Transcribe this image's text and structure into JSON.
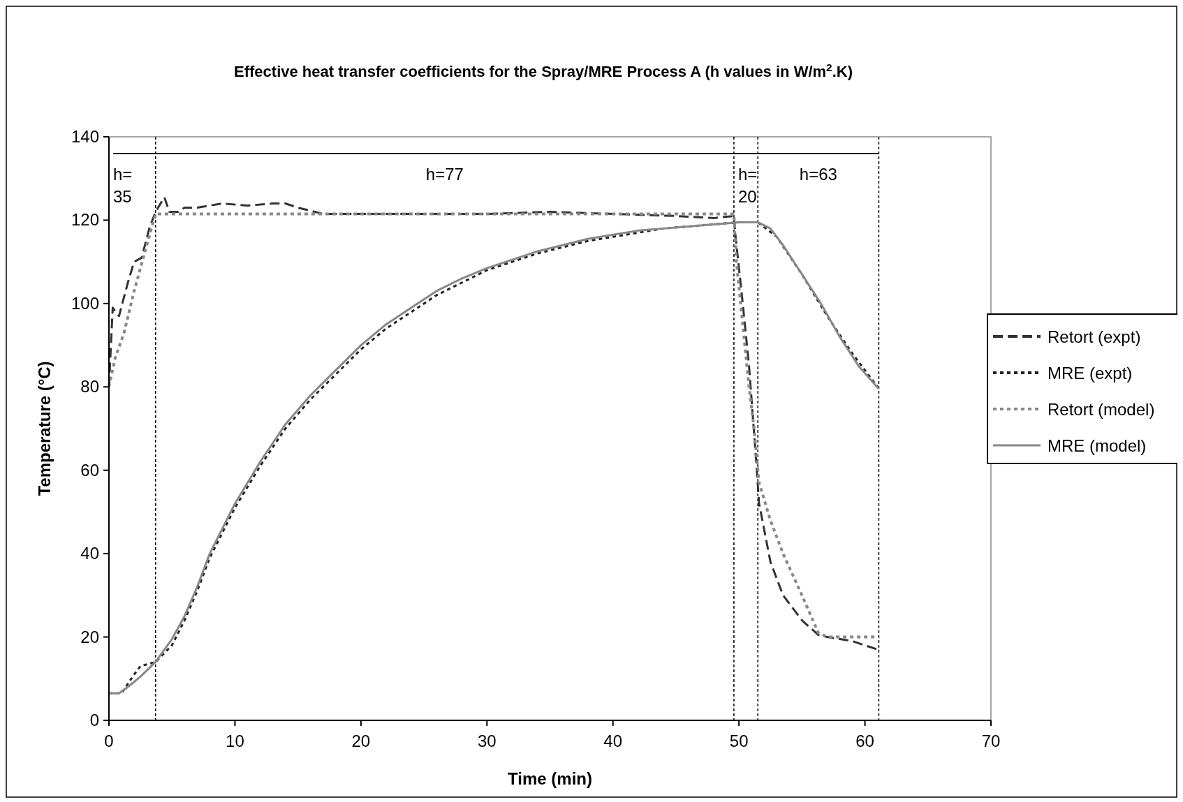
{
  "chart_data": {
    "type": "line",
    "title": "Effective heat transfer coefficients for the Spray/MRE Process A (h values in W/m$^{2}$.K)",
    "xlabel": "Time (min)",
    "ylabel": "Temperature (°C)",
    "xlim": [
      0,
      70
    ],
    "xticks": [
      0,
      10,
      20,
      30,
      40,
      50,
      60,
      70
    ],
    "ylim": [
      0,
      140
    ],
    "yticks": [
      0,
      20,
      40,
      60,
      80,
      100,
      120,
      140
    ],
    "grid": false,
    "legend": "right",
    "series": [
      {
        "name": "Retort (expt)",
        "color": "#333333",
        "line_style": "dashed",
        "x": [
          0,
          0.3,
          0.8,
          1.5,
          2,
          2.6,
          3.2,
          3.7,
          4.4,
          4.8,
          5.5,
          6,
          7,
          8,
          9,
          11,
          13,
          14,
          15,
          17,
          20,
          30,
          35,
          40,
          45,
          48,
          49.6,
          49.7,
          50.3,
          50.8,
          51.3,
          51.6,
          52.5,
          53.5,
          55,
          56.3,
          57,
          58,
          59,
          60,
          61
        ],
        "values": [
          80,
          99,
          97,
          105,
          110,
          111,
          118,
          122,
          125.5,
          122,
          122,
          123,
          123,
          123.5,
          124,
          123.5,
          124,
          124,
          123,
          121.5,
          121.5,
          121.5,
          122,
          121.5,
          121,
          120.5,
          121,
          117,
          100,
          85,
          65,
          52,
          38,
          30,
          24,
          20.5,
          20,
          19.5,
          19,
          18,
          17
        ]
      },
      {
        "name": "MRE (expt)",
        "color": "#222222",
        "line_style": "dotted",
        "x": [
          0,
          1,
          2,
          2.5,
          3.7,
          5,
          6,
          7,
          8,
          9,
          10,
          12,
          14,
          16,
          18,
          20,
          22,
          24,
          26,
          28,
          30,
          32,
          34,
          36,
          38,
          40,
          42,
          44,
          46,
          48,
          50,
          51.5,
          53,
          55,
          57,
          59,
          61
        ],
        "values": [
          6.5,
          6.5,
          11,
          13,
          14,
          18,
          24,
          31,
          39,
          45,
          51,
          61,
          70,
          77,
          83,
          89,
          94,
          98,
          102,
          105,
          108,
          110,
          112,
          113.5,
          115,
          116,
          117,
          118,
          118.5,
          119,
          119.5,
          119.5,
          116,
          107,
          97,
          88,
          80
        ]
      },
      {
        "name": "Retort (model)",
        "color": "#888888",
        "line_style": "dotted",
        "x": [
          0,
          0.5,
          1.2,
          2,
          3,
          3.7,
          5,
          20,
          49.6,
          49.8,
          50.3,
          50.8,
          51.2,
          51.6,
          52.5,
          53.5,
          55,
          56.3,
          57,
          61
        ],
        "values": [
          80,
          87,
          93,
          103,
          114,
          121.5,
          121.5,
          121.5,
          121.5,
          110,
          95,
          80,
          70,
          57,
          48,
          40,
          30,
          21,
          20,
          20
        ]
      },
      {
        "name": "MRE (model)",
        "color": "#888888",
        "line_style": "solid",
        "x": [
          0,
          0.8,
          1.5,
          2.5,
          3.7,
          5,
          6,
          7,
          8,
          9,
          10,
          12,
          14,
          16,
          18,
          20,
          22,
          24,
          26,
          28,
          30,
          32,
          34,
          36,
          38,
          40,
          42,
          44,
          46,
          48,
          50,
          51.5,
          52.5,
          53.5,
          55,
          56.5,
          58,
          59.5,
          61.1
        ],
        "values": [
          6.5,
          6.5,
          8,
          10.5,
          14,
          19.5,
          25,
          32,
          40,
          46,
          52,
          62,
          71,
          78,
          84,
          90,
          95,
          99,
          103,
          106,
          108.5,
          110.5,
          112.5,
          114,
          115.5,
          116.5,
          117.5,
          118,
          118.5,
          119,
          119.5,
          119.5,
          118,
          114,
          107,
          100,
          92,
          85,
          79.5
        ]
      }
    ],
    "ref_lines": [
      {
        "axis": "y",
        "value": 136,
        "color": "#000000",
        "line_style": "solid"
      },
      {
        "axis": "x",
        "value": 3.7,
        "color": "#000000",
        "line_style": "dashed"
      },
      {
        "axis": "x",
        "value": 49.6,
        "color": "#000000",
        "line_style": "dashed"
      },
      {
        "axis": "x",
        "value": 51.5,
        "color": "#000000",
        "line_style": "dashed"
      },
      {
        "axis": "x",
        "value": 61.1,
        "color": "#000000",
        "line_style": "dashed"
      }
    ],
    "annotations": [
      "h=\n35",
      "h=77",
      "h=\n20",
      "h=63"
    ]
  }
}
